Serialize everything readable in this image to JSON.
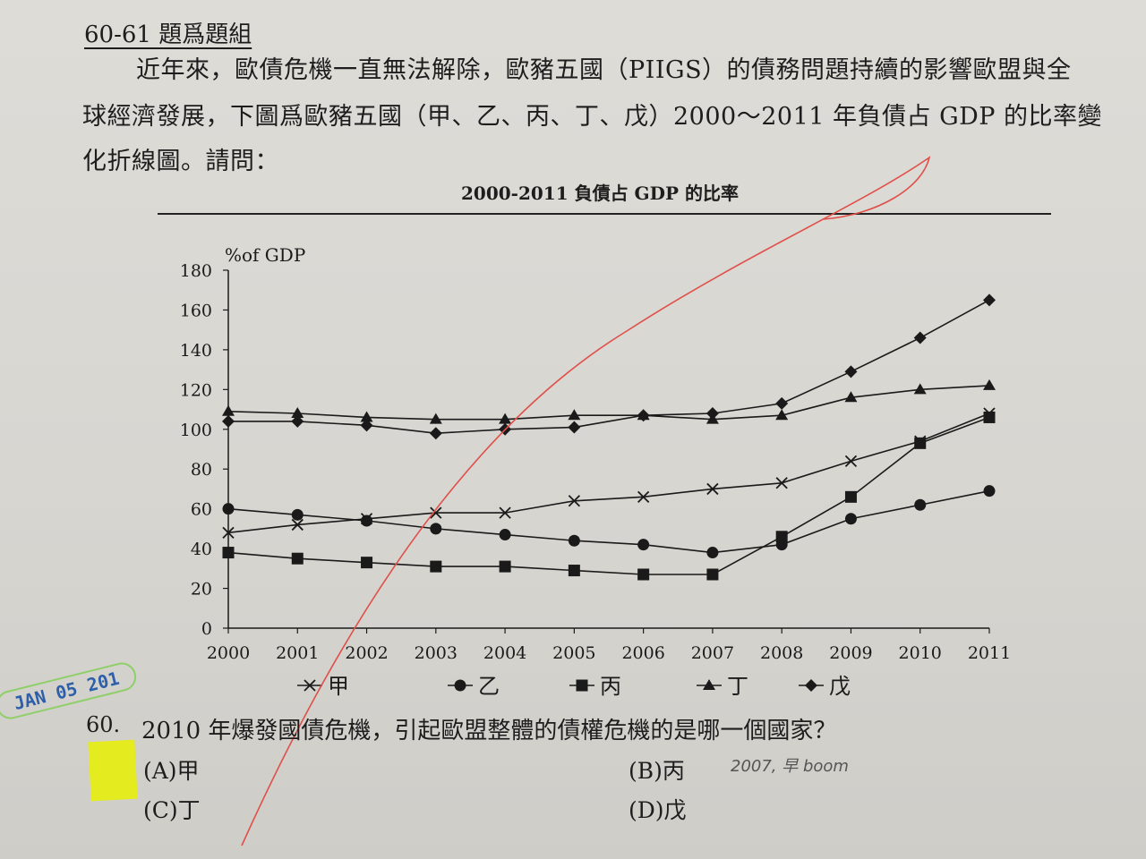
{
  "document": {
    "heading": "60-61 題爲題組",
    "paragraph_line1": "近年來，歐債危機一直無法解除，歐豬五國（PIIGS）的債務問題持續的影響歐盟與全",
    "paragraph_line2": "球經濟發展，下圖爲歐豬五國（甲、乙、丙、丁、戊）2000～2011 年負債占 GDP 的比率變",
    "paragraph_line3": "化折線圖。請問："
  },
  "chart_data": {
    "type": "line",
    "title": "2000-2011 負債占 GDP 的比率",
    "ylabel": "%of GDP",
    "xlabel": "",
    "x": [
      "2000",
      "2001",
      "2002",
      "2003",
      "2004",
      "2005",
      "2006",
      "2007",
      "2008",
      "2009",
      "2010",
      "2011"
    ],
    "ylim": [
      0,
      180
    ],
    "yticks": [
      0,
      20,
      40,
      60,
      80,
      100,
      120,
      140,
      160,
      180
    ],
    "grid": false,
    "legend_position": "bottom",
    "series": [
      {
        "name": "甲",
        "marker": "x",
        "values": [
          48,
          52,
          55,
          58,
          58,
          64,
          66,
          70,
          73,
          84,
          94,
          108
        ]
      },
      {
        "name": "乙",
        "marker": "circle",
        "values": [
          60,
          57,
          54,
          50,
          47,
          44,
          42,
          38,
          42,
          55,
          62,
          69
        ]
      },
      {
        "name": "丙",
        "marker": "square",
        "values": [
          38,
          35,
          33,
          31,
          31,
          29,
          27,
          27,
          46,
          66,
          93,
          106
        ]
      },
      {
        "name": "丁",
        "marker": "triangle",
        "values": [
          109,
          108,
          106,
          105,
          105,
          107,
          107,
          105,
          107,
          116,
          120,
          122
        ]
      },
      {
        "name": "戊",
        "marker": "diamond",
        "values": [
          104,
          104,
          102,
          98,
          100,
          101,
          107,
          108,
          113,
          129,
          146,
          165
        ]
      }
    ],
    "colors": {
      "line": "#1a1a1a",
      "annotation": "#e0504a"
    }
  },
  "question": {
    "number": "60.",
    "text": "2010 年爆發國債危機，引起歐盟整體的債權危機的是哪一個國家？",
    "options": {
      "a": "(A)甲",
      "b": "(B)丙",
      "c": "(C)丁",
      "d": "(D)戊"
    },
    "handwritten_note": "2007, 早 boom"
  },
  "stamp": {
    "text": "JAN 05 201"
  }
}
